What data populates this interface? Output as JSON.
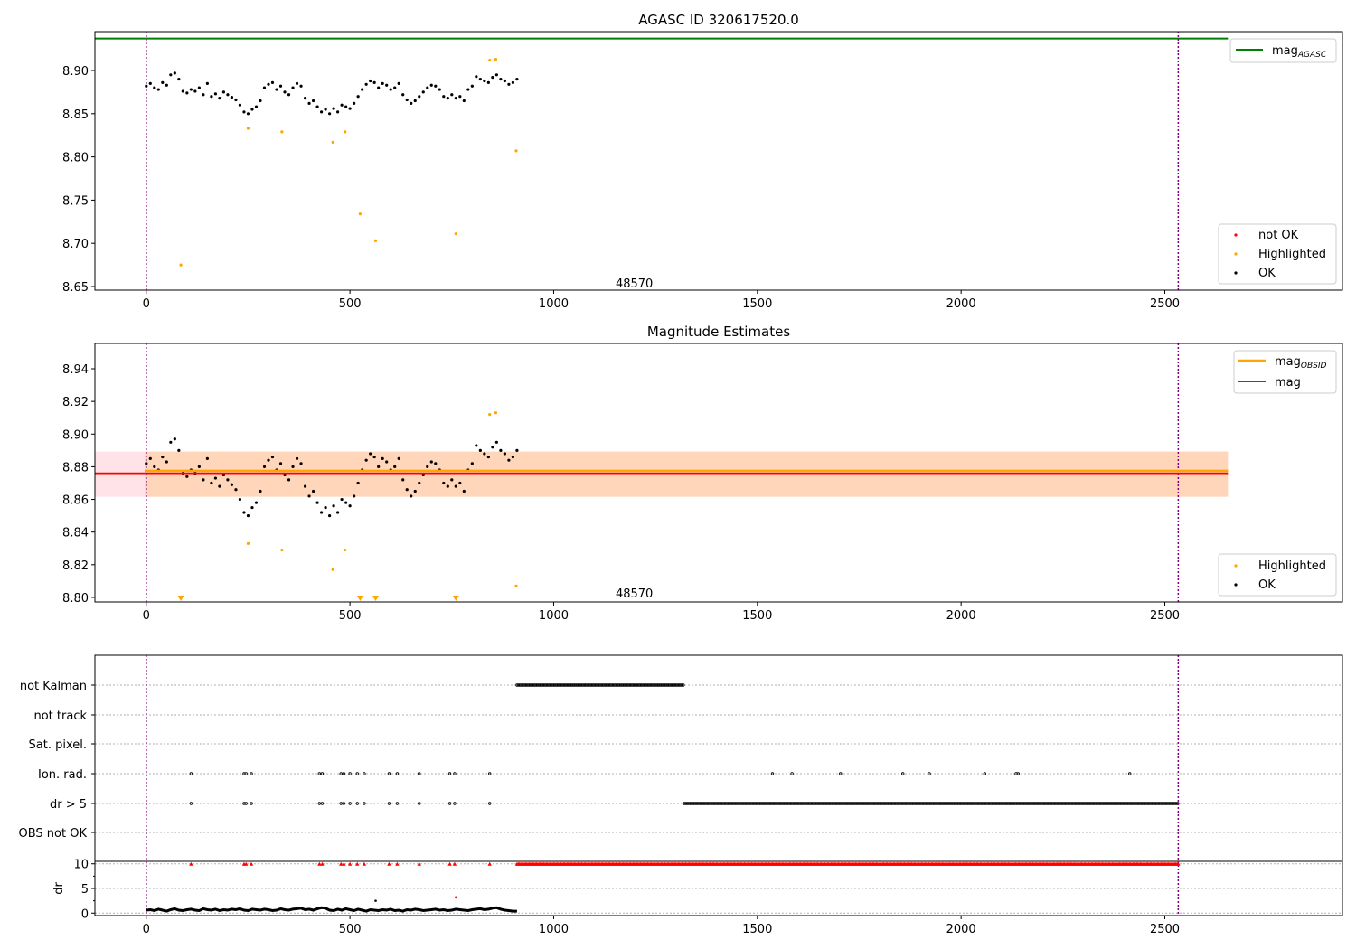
{
  "chart_data": [
    {
      "type": "scatter",
      "title": "AGASC ID 320617520.0",
      "xlim": [
        -126,
        2936
      ],
      "ylim": [
        8.6458,
        8.945
      ],
      "xticks": [
        0,
        500,
        1000,
        1500,
        2000,
        2500
      ],
      "yticks": [
        8.65,
        8.7,
        8.75,
        8.8,
        8.85,
        8.9
      ],
      "ytick_labels": [
        "8.65",
        "8.70",
        "8.75",
        "8.80",
        "8.85",
        "8.90"
      ],
      "annotation": "48570",
      "annotation_pos": [
        1260,
        8.652
      ],
      "vlines": [
        0,
        2533
      ],
      "mag_agasc": {
        "value": 8.937,
        "x_range": [
          -126,
          2655
        ],
        "label_main": "mag",
        "label_sub": "AGASC",
        "color": "#008000"
      },
      "legend_top": "top-right",
      "legend_bottom": {
        "position": "bottom-right",
        "entries": [
          "not OK",
          "Highlighted",
          "OK"
        ]
      },
      "ok_series": {
        "name": "OK",
        "x_start": 0,
        "x_step": 10,
        "color": "#000000"
      },
      "highlighted": {
        "name": "Highlighted",
        "color": "#ffa500",
        "x": [
          85,
          250,
          333,
          458,
          488,
          525,
          563,
          760,
          843,
          858,
          908
        ],
        "y": [
          8.675,
          8.833,
          8.829,
          8.817,
          8.829,
          8.734,
          8.703,
          8.711,
          8.912,
          8.913,
          8.807
        ]
      },
      "not_ok_color": "#ff0000"
    },
    {
      "type": "scatter",
      "title": "Magnitude Estimates",
      "xlim": [
        -126,
        2936
      ],
      "ylim": [
        8.7972,
        8.9555
      ],
      "xticks": [
        0,
        500,
        1000,
        1500,
        2000,
        2500
      ],
      "yticks": [
        8.8,
        8.82,
        8.84,
        8.86,
        8.88,
        8.9,
        8.92,
        8.94
      ],
      "ytick_labels": [
        "8.80",
        "8.82",
        "8.84",
        "8.86",
        "8.88",
        "8.90",
        "8.92",
        "8.94"
      ],
      "annotation": "48570",
      "annotation_pos": [
        1260,
        8.8015
      ],
      "vlines": [
        0,
        2533
      ],
      "mag": {
        "value": 8.876,
        "band": [
          8.8616,
          8.8893
        ],
        "x_range": [
          -126,
          2655
        ],
        "label": "mag",
        "color": "#ff0000"
      },
      "mag_obsid": {
        "value": 8.8775,
        "label_main": "mag",
        "label_sub": "OBSID",
        "color": "#ffa500"
      },
      "legend_bottom": {
        "position": "bottom-right",
        "entries": [
          "Highlighted",
          "OK"
        ]
      },
      "below_range_markers_x": [
        85,
        525,
        563,
        760
      ]
    },
    {
      "type": "scatter",
      "title": "",
      "xlim": [
        -126,
        2936
      ],
      "categories": [
        "not Kalman",
        "not track",
        "Sat. pixel.",
        "Ion. rad.",
        "dr > 5",
        "OBS not OK"
      ],
      "xticks": [
        0,
        500,
        1000,
        1500,
        2000,
        2500
      ],
      "flags": {
        "not Kalman": {
          "ranges": [
            [
              910,
              1320
            ]
          ],
          "points": []
        },
        "not track": {
          "ranges": [],
          "points": []
        },
        "Sat. pixel.": {
          "ranges": [],
          "points": []
        },
        "Ion. rad.": {
          "ranges": [],
          "points": [
            110,
            240,
            245,
            258,
            425,
            432,
            478,
            485,
            500,
            518,
            535,
            596,
            616,
            670,
            745,
            757,
            843,
            1537,
            1585,
            1704,
            1857,
            1922,
            2058,
            2135,
            2140,
            2414
          ]
        },
        "dr > 5": {
          "ranges": [
            [
              1320,
              2533
            ]
          ],
          "points": [
            110,
            240,
            245,
            258,
            425,
            432,
            478,
            485,
            500,
            518,
            535,
            596,
            616,
            670,
            745,
            757,
            843
          ]
        },
        "OBS not OK": {
          "ranges": [],
          "points": []
        }
      },
      "dr": {
        "ylabel": "dr",
        "ylim": [
          -0.5,
          10.5
        ],
        "yticks": [
          0,
          5,
          10
        ],
        "ytick_labels": [
          "0",
          "5",
          "10"
        ],
        "clipped_value": 10,
        "clipped_x_points": [
          110,
          240,
          245,
          258,
          425,
          432,
          478,
          485,
          500,
          518,
          535,
          596,
          616,
          670,
          745,
          757,
          843
        ],
        "clipped_ranges": [
          [
            910,
            2533
          ]
        ],
        "outliers": [
          {
            "x": 563,
            "y": 2.5,
            "status": "OK"
          },
          {
            "x": 760,
            "y": 3.2,
            "status": "not OK"
          }
        ],
        "x_start": 0,
        "x_step": 10,
        "values": [
          0.6,
          0.7,
          0.5,
          0.8,
          0.6,
          0.4,
          0.7,
          0.9,
          0.6,
          0.5,
          0.7,
          0.8,
          0.6,
          0.5,
          0.9,
          0.7,
          0.6,
          0.8,
          0.5,
          0.7,
          0.6,
          0.8,
          0.7,
          0.9,
          0.6,
          0.5,
          0.8,
          0.7,
          0.6,
          0.8,
          0.7,
          0.5,
          0.6,
          0.9,
          0.7,
          0.6,
          0.8,
          0.9,
          1.0,
          0.7,
          0.8,
          0.6,
          0.9,
          1.1,
          1.0,
          0.6,
          0.5,
          0.8,
          0.6,
          0.9,
          0.7,
          0.5,
          0.8,
          0.6,
          0.4,
          0.7,
          0.6,
          0.5,
          0.7,
          0.6,
          0.8,
          0.5,
          0.6,
          0.4,
          0.7,
          0.6,
          0.8,
          0.7,
          0.5,
          0.6,
          0.7,
          0.8,
          0.6,
          0.7,
          0.5,
          0.6,
          0.8,
          0.7,
          0.6,
          0.5,
          0.7,
          0.8,
          0.9,
          0.7,
          0.8,
          1.0,
          1.1,
          0.8,
          0.6,
          0.5,
          0.4,
          0.4
        ]
      }
    }
  ],
  "mag_values": [
    8.882,
    8.885,
    8.88,
    8.878,
    8.886,
    8.883,
    8.895,
    8.897,
    8.89,
    8.876,
    8.874,
    8.878,
    8.876,
    8.88,
    8.872,
    8.885,
    8.87,
    8.873,
    8.868,
    8.875,
    8.872,
    8.869,
    8.866,
    8.86,
    8.852,
    8.85,
    8.855,
    8.858,
    8.865,
    8.88,
    8.884,
    8.886,
    8.878,
    8.882,
    8.875,
    8.872,
    8.88,
    8.885,
    8.882,
    8.868,
    8.862,
    8.865,
    8.858,
    8.852,
    8.855,
    8.85,
    8.856,
    8.852,
    8.86,
    8.858,
    8.856,
    8.862,
    8.87,
    8.878,
    8.884,
    8.888,
    8.886,
    8.88,
    8.885,
    8.883,
    8.878,
    8.88,
    8.885,
    8.872,
    8.866,
    8.862,
    8.865,
    8.87,
    8.875,
    8.88,
    8.883,
    8.882,
    8.878,
    8.87,
    8.868,
    8.872,
    8.868,
    8.87,
    8.865,
    8.878,
    8.882,
    8.893,
    8.89,
    8.888,
    8.886,
    8.892,
    8.895,
    8.89,
    8.888,
    8.884,
    8.886,
    8.89
  ]
}
